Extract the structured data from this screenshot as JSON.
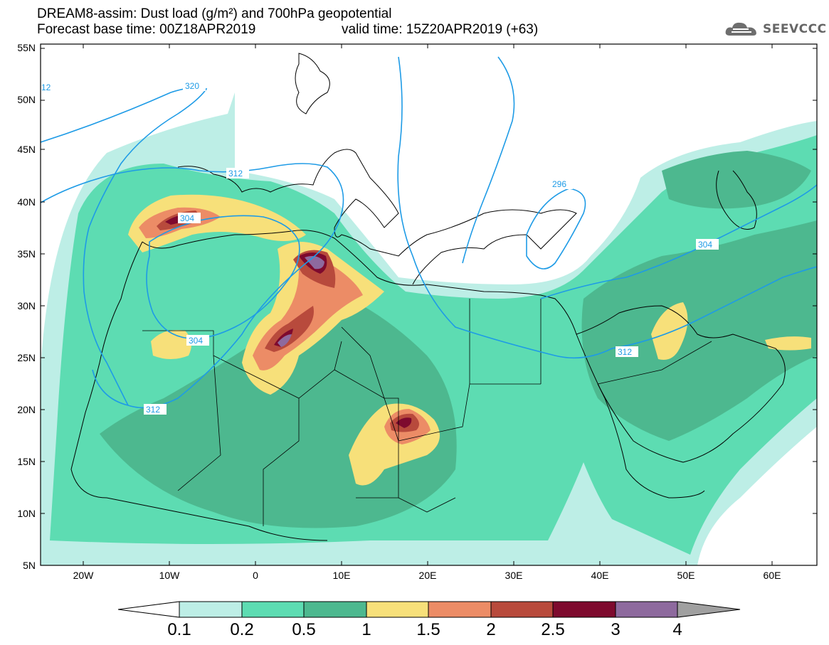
{
  "header": {
    "title": "DREAM8-assim: Dust load (g/m²) and 700hPa geopotential",
    "base_time": "Forecast base time: 00Z18APR2019",
    "valid_time": "valid time: 15Z20APR2019 (+63)"
  },
  "logo": {
    "text": "SEEVCCC",
    "icon": "cloud-icon"
  },
  "axes": {
    "lat_labels": [
      "55N",
      "50N",
      "45N",
      "40N",
      "35N",
      "30N",
      "25N",
      "20N",
      "15N",
      "10N",
      "5N"
    ],
    "lon_labels": [
      "20W",
      "10W",
      "0",
      "10E",
      "20E",
      "30E",
      "40E",
      "50E",
      "60E"
    ]
  },
  "contours": {
    "color": "#1e9be6",
    "labels": [
      "12",
      "320",
      "312",
      "304",
      "304",
      "312",
      "296",
      "304",
      "312"
    ]
  },
  "colorbar": {
    "levels": [
      "0.1",
      "0.2",
      "0.5",
      "1",
      "1.5",
      "2",
      "2.5",
      "3",
      "4"
    ],
    "colors": [
      "#ffffff",
      "#bdeee6",
      "#5ddcb2",
      "#4db88f",
      "#f7e07a",
      "#ec8c66",
      "#b84a3c",
      "#7e0a2e",
      "#8e6a9e",
      "#a0a0a0"
    ]
  }
}
